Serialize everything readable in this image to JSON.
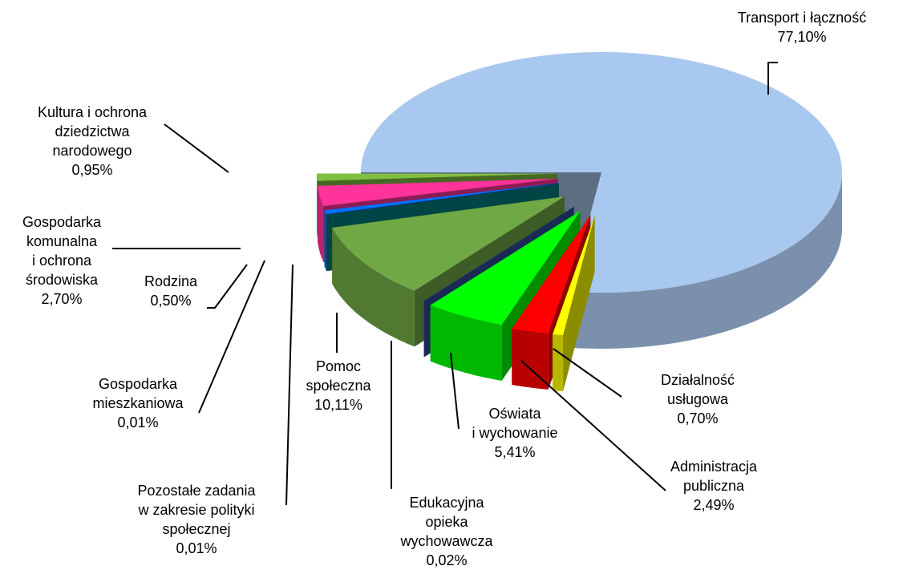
{
  "chart_data": {
    "type": "pie3d",
    "categories": [
      "Transport i łączność",
      "Działalność\nusługowa",
      "Administracja\npubliczna",
      "Oświata\ni wychowanie",
      "Edukacyjna\nopieka\nwychowawcza",
      "Pomoc\nspołeczna",
      "Pozostałe zadania\nw zakresie polityki\nspołecznej",
      "Gospodarka\nmieszkaniowa",
      "Rodzina",
      "Gospodarka\nkomunalna\ni ochrona\nśrodowiska",
      "Kultura i ochrona\ndziedzictwa\nnarodowego"
    ],
    "values": [
      77.1,
      0.7,
      2.49,
      5.41,
      0.02,
      10.11,
      0.01,
      0.01,
      0.5,
      2.7,
      0.95
    ],
    "value_labels": [
      "77,10%",
      "0,70%",
      "2,49%",
      "5,41%",
      "0,02%",
      "10,11%",
      "0,01%",
      "0,01%",
      "0,50%",
      "2,70%",
      "0,95%"
    ],
    "colors": [
      "#a9c8ef",
      "#ffff00",
      "#ff0000",
      "#00ff00",
      "#2e4f9a",
      "#70a845",
      "#007d7d",
      "#5b0f8c",
      "#0070ff",
      "#ff3399",
      "#80c040"
    ]
  }
}
